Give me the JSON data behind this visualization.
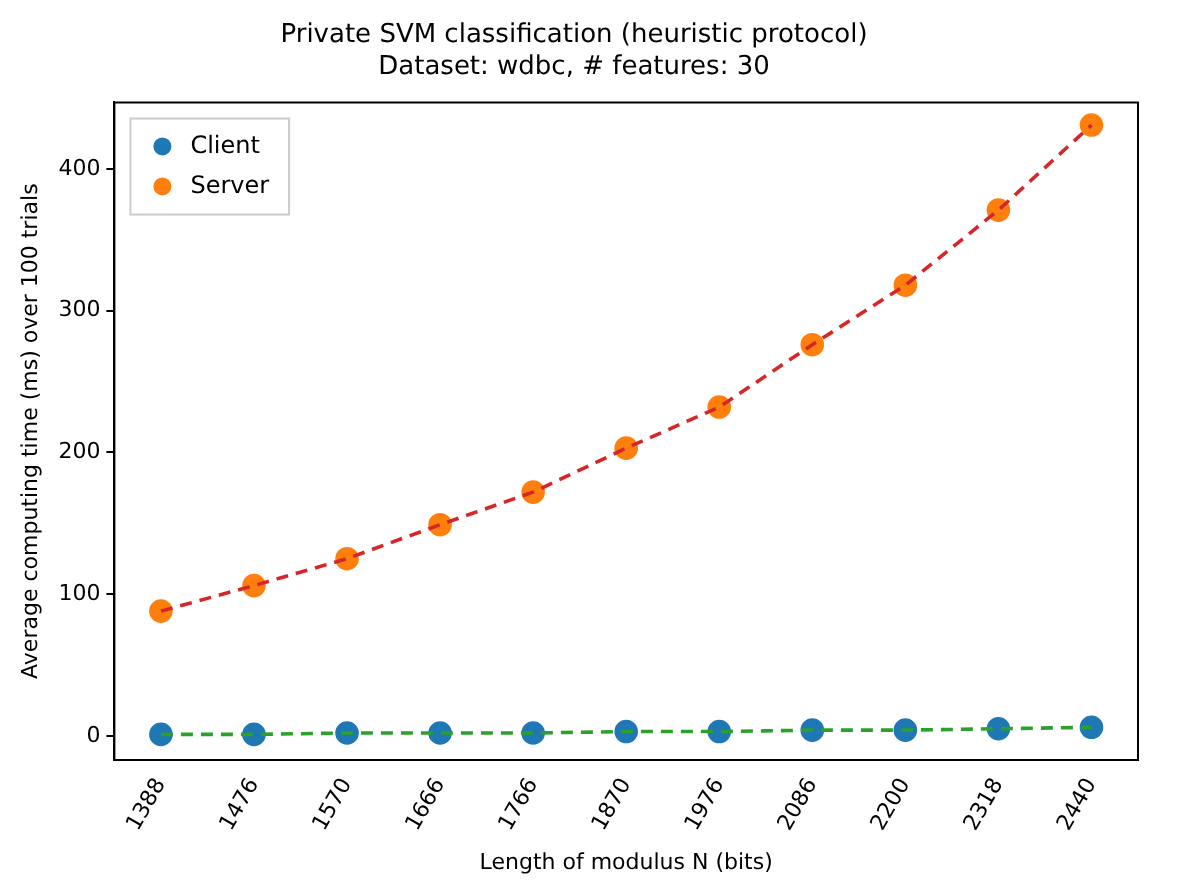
{
  "chart_data": {
    "type": "line",
    "title": "Private SVM classification (heuristic protocol)",
    "subtitle": "Dataset: wdbc, # features: 30",
    "xlabel": "Length of modulus N (bits)",
    "ylabel": "Average computing time (ms) over 100 trials",
    "categories": [
      "1388",
      "1476",
      "1570",
      "1666",
      "1766",
      "1870",
      "1976",
      "2086",
      "2200",
      "2318",
      "2440"
    ],
    "series": [
      {
        "color": "#2ca02c",
        "line_style": "dashed",
        "marker": "none",
        "values": [
          1,
          1,
          2,
          2,
          2,
          3,
          3,
          4,
          4,
          5,
          6
        ]
      },
      {
        "color": "#d62728",
        "line_style": "dashed",
        "marker": "none",
        "values": [
          88,
          106,
          125,
          149,
          172,
          203,
          232,
          276,
          318,
          371,
          431
        ]
      },
      {
        "type": "scatter",
        "name": "Client",
        "color": "#1f77b4",
        "marker": "circle",
        "values": [
          1,
          1,
          2,
          2,
          2,
          3,
          3,
          4,
          4,
          5,
          6
        ]
      },
      {
        "type": "scatter",
        "name": "Server",
        "color": "#ff7f0e",
        "marker": "circle",
        "values": [
          88,
          106,
          125,
          149,
          172,
          203,
          232,
          276,
          318,
          371,
          431
        ]
      }
    ],
    "ylim": [
      -17,
      447
    ],
    "yticks": [
      0,
      100,
      200,
      300,
      400
    ],
    "grid": false,
    "legend": "top left"
  }
}
